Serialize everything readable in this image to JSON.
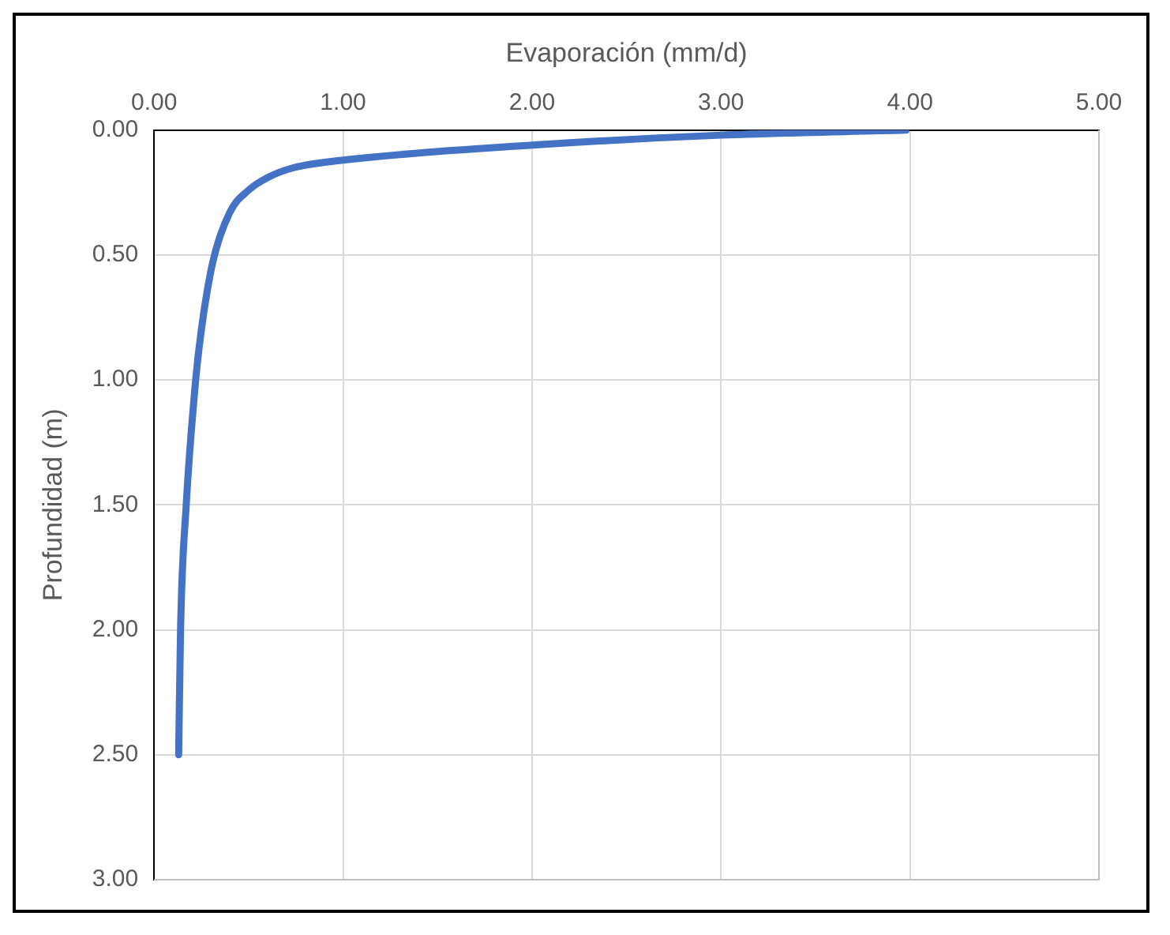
{
  "chart_data": {
    "type": "line",
    "xlabel": "Evaporación (mm/d)",
    "ylabel": "Profundidad (m)",
    "x": [
      3.98,
      3.0,
      2.0,
      1.0,
      0.74,
      0.6,
      0.5,
      0.4,
      0.31,
      0.25,
      0.22,
      0.17,
      0.14,
      0.13
    ],
    "series": [
      {
        "color": "#4472c4",
        "values": [
          0.0,
          0.02,
          0.06,
          0.12,
          0.15,
          0.19,
          0.24,
          0.33,
          0.53,
          0.8,
          1.0,
          1.5,
          2.0,
          2.5
        ]
      }
    ],
    "xlim": [
      0,
      5
    ],
    "xticks": [
      {
        "value": 0,
        "label": "0.00"
      },
      {
        "value": 1,
        "label": "1.00"
      },
      {
        "value": 2,
        "label": "2.00"
      },
      {
        "value": 3,
        "label": "3.00"
      },
      {
        "value": 4,
        "label": "4.00"
      },
      {
        "value": 5,
        "label": "5.00"
      }
    ],
    "ylim": [
      3,
      0
    ],
    "yticks": [
      {
        "value": 0,
        "label": "0.00"
      },
      {
        "value": 0.5,
        "label": "0.50"
      },
      {
        "value": 1,
        "label": "1.00"
      },
      {
        "value": 1.5,
        "label": "1.50"
      },
      {
        "value": 2,
        "label": "2.00"
      },
      {
        "value": 2.5,
        "label": "2.50"
      },
      {
        "value": 3,
        "label": "3.00"
      }
    ],
    "grid": true,
    "legend": false,
    "marker": "none",
    "line_style": "solid"
  }
}
